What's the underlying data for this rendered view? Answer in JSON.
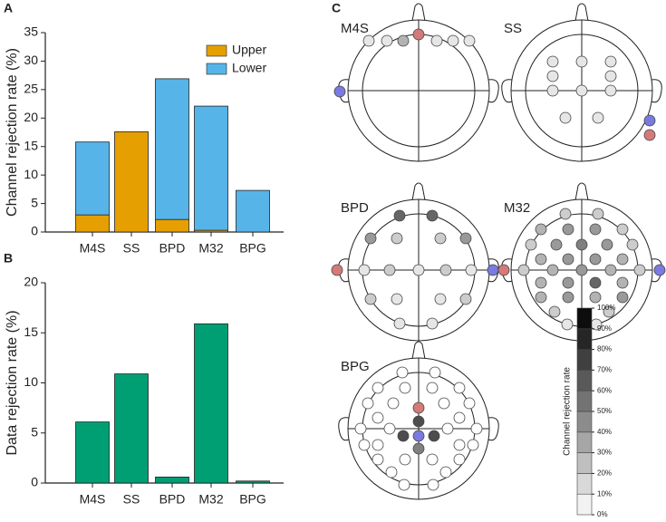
{
  "chart_data": [
    {
      "type": "bar",
      "panel_label": "A",
      "stacked": true,
      "ylabel": "Channel rejection rate (%)",
      "categories": [
        "M4S",
        "SS",
        "BPD",
        "M32",
        "BPG"
      ],
      "series": [
        {
          "name": "Upper",
          "color": "#e69f00",
          "values": [
            3,
            17.6,
            2.2,
            0.3,
            0
          ]
        },
        {
          "name": "Lower",
          "color": "#56b4e9",
          "values": [
            12.8,
            0,
            24.7,
            21.8,
            7.3
          ]
        }
      ],
      "ylim": [
        0,
        35
      ],
      "yticks": [
        0,
        5,
        10,
        15,
        20,
        25,
        30,
        35
      ],
      "legend": "upper right"
    },
    {
      "type": "bar",
      "panel_label": "B",
      "ylabel": "Data rejection rate (%)",
      "categories": [
        "M4S",
        "SS",
        "BPD",
        "M32",
        "BPG"
      ],
      "color": "#009e73",
      "values": [
        6.1,
        10.9,
        0.6,
        15.9,
        0.2
      ],
      "ylim": [
        0,
        20
      ],
      "yticks": [
        0,
        5,
        10,
        15,
        20
      ]
    },
    {
      "type": "topoplot",
      "panel_label": "C",
      "colorbar_label": "Channel rejection rate",
      "clim": [
        0,
        100
      ],
      "cticks": [
        {
          "value": 0,
          "label": "0%"
        },
        {
          "value": 10,
          "label": "10%"
        },
        {
          "value": 20,
          "label": "20%"
        },
        {
          "value": 30,
          "label": "30%"
        },
        {
          "value": 40,
          "label": "40%"
        },
        {
          "value": 50,
          "label": "50%"
        },
        {
          "value": 60,
          "label": "60%"
        },
        {
          "value": 70,
          "label": "70%"
        },
        {
          "value": 80,
          "label": "80%"
        },
        {
          "value": 90,
          "label": "90%"
        },
        {
          "value": 100,
          "label": "100%"
        }
      ],
      "heads": [
        {
          "name": "M4S",
          "rates": [
            10,
            10,
            30,
            10,
            10,
            10
          ]
        },
        {
          "name": "SS",
          "rates": [
            10,
            10,
            10,
            10,
            10,
            10,
            10,
            10,
            10,
            10
          ]
        },
        {
          "name": "BPD",
          "rates": [
            60,
            60,
            40,
            20,
            20,
            40,
            10,
            20,
            10,
            20,
            10,
            20,
            10,
            10,
            20,
            10,
            10
          ]
        },
        {
          "name": "M32",
          "rates": [
            20,
            20,
            30,
            40,
            40,
            20,
            20,
            40,
            50,
            40,
            20,
            30,
            40,
            40,
            30,
            20,
            30,
            40,
            30,
            20,
            30,
            40,
            60,
            30,
            30,
            40,
            30,
            40,
            20,
            20,
            10,
            10
          ]
        },
        {
          "name": "BPG",
          "rates": [
            0,
            0,
            0,
            0,
            0,
            0,
            0,
            70,
            0,
            0,
            0,
            0,
            0,
            70,
            70,
            0,
            0,
            0,
            0,
            0,
            50,
            0,
            0,
            0,
            0,
            0,
            0,
            0,
            0,
            0,
            0,
            0
          ]
        }
      ]
    }
  ]
}
